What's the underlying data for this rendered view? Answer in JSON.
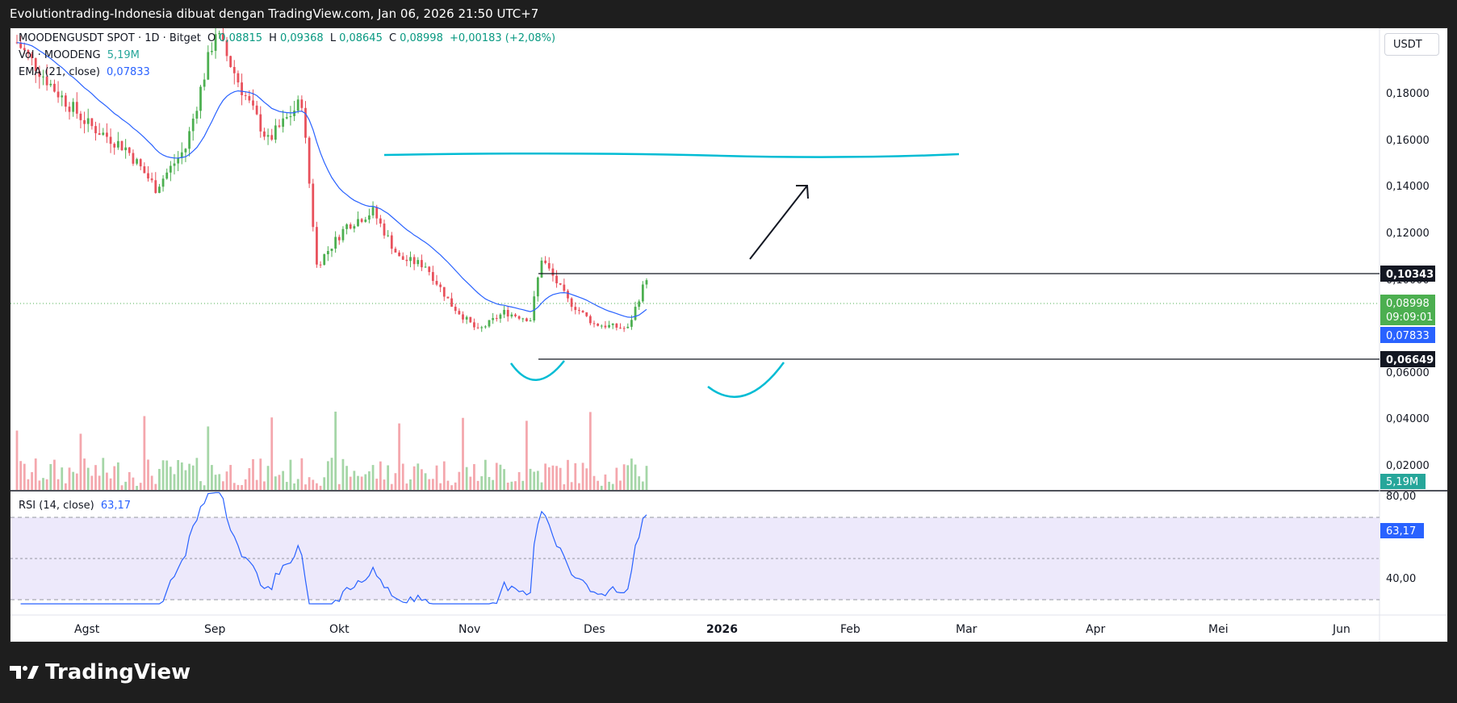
{
  "header": {
    "title": "Evolutiontrading-Indonesia dibuat dengan TradingView.com, Jan 06, 2026 21:50 UTC+7"
  },
  "legend": {
    "symbol": "MOODENGUSDT SPOT · 1D · Bitget",
    "o_label": "O",
    "o_value": "0,08815",
    "h_label": "H",
    "h_value": "0,09368",
    "l_label": "L",
    "l_value": "0,08645",
    "c_label": "C",
    "c_value": "0,08998",
    "change": "+0,00183 (+2,08%)",
    "volume_label": "Vol · MOODENG",
    "volume_value": "5,19M",
    "ema_label": "EMA (21, close)",
    "ema_value": "0,07833",
    "rsi_label": "RSI (14, close)",
    "rsi_value": "63,17"
  },
  "price_axis": {
    "unit": "USDT",
    "ticks": [
      "0,18000",
      "0,16000",
      "0,14000",
      "0,12000",
      "0,10000",
      "0,06000",
      "0,04000",
      "0,02000"
    ],
    "resistance_label": "0,10343",
    "last_price_label": "0,08998",
    "countdown_label": "09:09:01",
    "ema_label": "0,07833",
    "support_label": "0,06649",
    "volume_label": "5,19M"
  },
  "rsi_axis": {
    "ticks": [
      "80,00",
      "40,00"
    ],
    "value_label": "63,17"
  },
  "time_axis": {
    "labels": [
      "Agst",
      "Sep",
      "Okt",
      "Nov",
      "Des",
      "2026",
      "Feb",
      "Mar",
      "Apr",
      "Mei",
      "Jun"
    ]
  },
  "colors": {
    "up": "#4caf50",
    "down": "#e8505b",
    "ema": "#2962ff",
    "annotation": "#00bcd4",
    "rsi_band": "#ede9fb"
  },
  "footer": {
    "brand": "TradingView"
  },
  "chart_data": {
    "type": "candlestick",
    "symbol": "MOODENGUSDT",
    "ohlc_points": [
      {
        "x": "2025-07-22",
        "c": 0.19
      },
      {
        "x": "2025-08-01",
        "c": 0.17
      },
      {
        "x": "2025-08-10",
        "c": 0.155
      },
      {
        "x": "2025-08-20",
        "c": 0.145
      },
      {
        "x": "2025-08-28",
        "c": 0.128
      },
      {
        "x": "2025-09-05",
        "c": 0.145
      },
      {
        "x": "2025-09-13",
        "c": 0.195
      },
      {
        "x": "2025-09-20",
        "c": 0.17
      },
      {
        "x": "2025-09-27",
        "c": 0.148
      },
      {
        "x": "2025-10-06",
        "c": 0.165
      },
      {
        "x": "2025-10-10",
        "c": 0.095
      },
      {
        "x": "2025-10-18",
        "c": 0.112
      },
      {
        "x": "2025-10-25",
        "c": 0.118
      },
      {
        "x": "2025-11-01",
        "c": 0.098
      },
      {
        "x": "2025-11-08",
        "c": 0.095
      },
      {
        "x": "2025-11-15",
        "c": 0.078
      },
      {
        "x": "2025-11-22",
        "c": 0.067
      },
      {
        "x": "2025-11-29",
        "c": 0.075
      },
      {
        "x": "2025-12-06",
        "c": 0.072
      },
      {
        "x": "2025-12-09",
        "c": 0.098
      },
      {
        "x": "2025-12-16",
        "c": 0.08
      },
      {
        "x": "2025-12-23",
        "c": 0.07
      },
      {
        "x": "2026-01-01",
        "c": 0.068
      },
      {
        "x": "2026-01-06",
        "c": 0.08998
      }
    ],
    "ema21_last": 0.07833,
    "levels": {
      "resistance": 0.10343,
      "support": 0.06649
    },
    "rsi_last": 63.17,
    "volume_last": "5,19M",
    "ylim": [
      0.0,
      0.196
    ],
    "rsi_ylim": [
      20,
      90
    ],
    "annotations": [
      "horizontal target line near 0,153",
      "arrow pointing up",
      "two rounded bottom arcs"
    ]
  }
}
